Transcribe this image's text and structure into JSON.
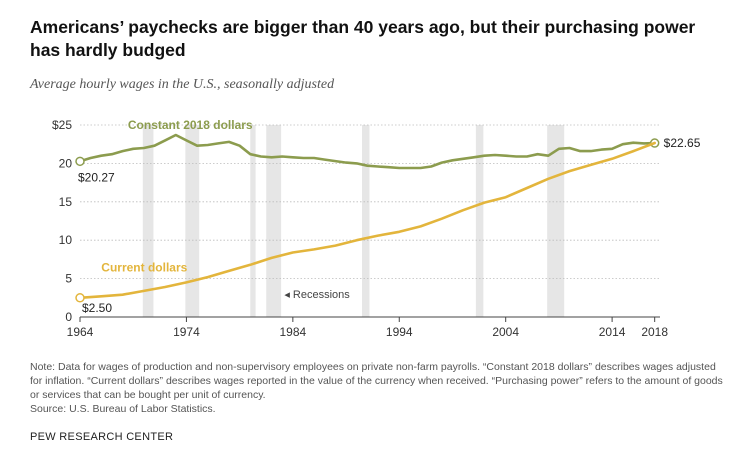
{
  "title": "Americans’ paychecks are bigger than 40 years ago, but their purchasing power has hardly budged",
  "subtitle": "Average hourly wages in the U.S., seasonally adjusted",
  "note": "Note: Data for wages of production and non-supervisory employees on private non-farm payrolls. “Constant 2018 dollars” describes wages adjusted for inflation. “Current dollars” describes wages reported in the value of the currency when received. “Purchasing power” refers to the amount of goods or services that can be bought per unit of currency.",
  "source": "Source: U.S. Bureau of Labor Statistics.",
  "brand": "PEW RESEARCH CENTER",
  "colors": {
    "constant": "#8c9c4e",
    "current": "#e3b53c",
    "recession": "#e6e6e6",
    "grid": "#bcbcbc",
    "axis": "#444444",
    "text": "#333333"
  },
  "chart_data": {
    "type": "line",
    "title": "Americans’ paychecks are bigger than 40 years ago, but their purchasing power has hardly budged",
    "subtitle": "Average hourly wages in the U.S., seasonally adjusted",
    "xlabel": "",
    "ylabel": "",
    "xlim": [
      1964,
      2018.5
    ],
    "ylim": [
      0,
      25
    ],
    "x_ticks": [
      1964,
      1974,
      1984,
      1994,
      2004,
      2014,
      2018
    ],
    "y_ticks": [
      {
        "value": 25,
        "label": "$25"
      },
      {
        "value": 20,
        "label": "20"
      },
      {
        "value": 15,
        "label": "15"
      },
      {
        "value": 10,
        "label": "10"
      },
      {
        "value": 5,
        "label": "5"
      },
      {
        "value": 0,
        "label": "0"
      }
    ],
    "grid": true,
    "recessions": [
      [
        1969.9,
        1970.9
      ],
      [
        1973.9,
        1975.2
      ],
      [
        1980.0,
        1980.5
      ],
      [
        1981.5,
        1982.9
      ],
      [
        1990.5,
        1991.2
      ],
      [
        2001.2,
        2001.9
      ],
      [
        2007.9,
        2009.5
      ]
    ],
    "recession_label": "◂ Recessions",
    "series": [
      {
        "name": "Constant 2018 dollars",
        "key": "constant",
        "points": [
          [
            1964,
            20.27
          ],
          [
            1965,
            20.7
          ],
          [
            1966,
            21.0
          ],
          [
            1967,
            21.2
          ],
          [
            1968,
            21.6
          ],
          [
            1969,
            21.9
          ],
          [
            1970,
            22.0
          ],
          [
            1971,
            22.3
          ],
          [
            1972,
            23.0
          ],
          [
            1973,
            23.7
          ],
          [
            1974,
            23.0
          ],
          [
            1975,
            22.3
          ],
          [
            1976,
            22.4
          ],
          [
            1977,
            22.6
          ],
          [
            1978,
            22.8
          ],
          [
            1979,
            22.3
          ],
          [
            1980,
            21.2
          ],
          [
            1981,
            20.9
          ],
          [
            1982,
            20.8
          ],
          [
            1983,
            20.9
          ],
          [
            1984,
            20.8
          ],
          [
            1985,
            20.7
          ],
          [
            1986,
            20.7
          ],
          [
            1987,
            20.5
          ],
          [
            1988,
            20.3
          ],
          [
            1989,
            20.1
          ],
          [
            1990,
            20.0
          ],
          [
            1991,
            19.7
          ],
          [
            1992,
            19.6
          ],
          [
            1993,
            19.5
          ],
          [
            1994,
            19.4
          ],
          [
            1995,
            19.4
          ],
          [
            1996,
            19.4
          ],
          [
            1997,
            19.6
          ],
          [
            1998,
            20.1
          ],
          [
            1999,
            20.4
          ],
          [
            2000,
            20.6
          ],
          [
            2001,
            20.8
          ],
          [
            2002,
            21.0
          ],
          [
            2003,
            21.1
          ],
          [
            2004,
            21.0
          ],
          [
            2005,
            20.9
          ],
          [
            2006,
            20.9
          ],
          [
            2007,
            21.2
          ],
          [
            2008,
            21.0
          ],
          [
            2009,
            21.9
          ],
          [
            2010,
            22.0
          ],
          [
            2011,
            21.6
          ],
          [
            2012,
            21.6
          ],
          [
            2013,
            21.8
          ],
          [
            2014,
            21.9
          ],
          [
            2015,
            22.5
          ],
          [
            2016,
            22.7
          ],
          [
            2017,
            22.6
          ],
          [
            2018,
            22.65
          ]
        ],
        "start_label": "$20.27",
        "end_label": "$22.65"
      },
      {
        "name": "Current dollars",
        "key": "current",
        "points": [
          [
            1964,
            2.5
          ],
          [
            1966,
            2.7
          ],
          [
            1968,
            2.9
          ],
          [
            1970,
            3.4
          ],
          [
            1972,
            3.9
          ],
          [
            1974,
            4.5
          ],
          [
            1976,
            5.2
          ],
          [
            1978,
            6.0
          ],
          [
            1980,
            6.8
          ],
          [
            1982,
            7.7
          ],
          [
            1984,
            8.4
          ],
          [
            1986,
            8.8
          ],
          [
            1988,
            9.3
          ],
          [
            1990,
            10.0
          ],
          [
            1992,
            10.6
          ],
          [
            1994,
            11.1
          ],
          [
            1996,
            11.8
          ],
          [
            1998,
            12.8
          ],
          [
            2000,
            13.9
          ],
          [
            2002,
            14.9
          ],
          [
            2004,
            15.6
          ],
          [
            2006,
            16.8
          ],
          [
            2008,
            18.0
          ],
          [
            2010,
            19.0
          ],
          [
            2012,
            19.8
          ],
          [
            2014,
            20.6
          ],
          [
            2016,
            21.6
          ],
          [
            2018,
            22.65
          ]
        ],
        "start_label": "$2.50"
      }
    ]
  }
}
